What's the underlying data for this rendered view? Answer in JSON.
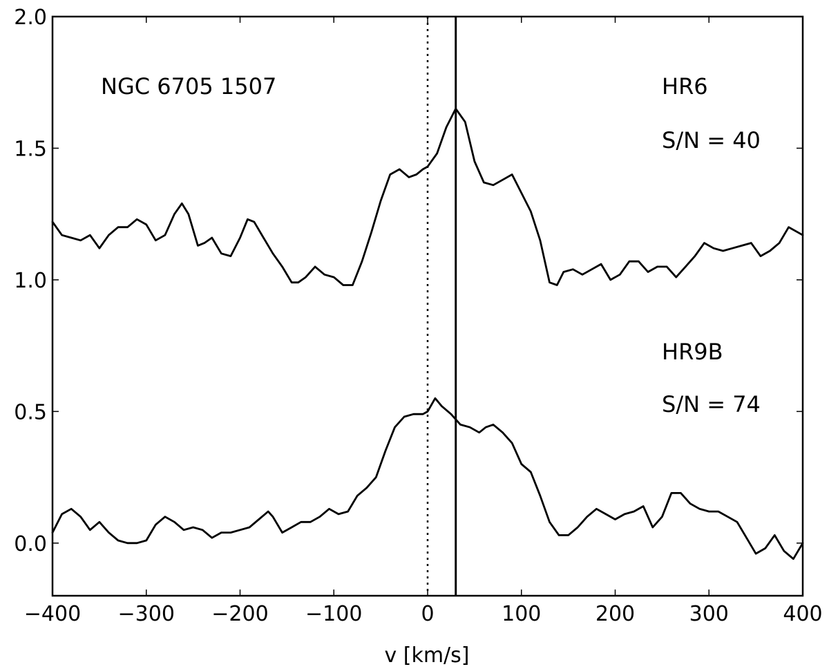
{
  "chart_data": {
    "type": "line",
    "xlabel": "v [km/s]",
    "ylabel": "",
    "xlim": [
      -400,
      400
    ],
    "ylim": [
      -0.2,
      2.0
    ],
    "x_ticks": [
      -400,
      -300,
      -200,
      -100,
      0,
      100,
      200,
      300,
      400
    ],
    "x_tick_labels": [
      "−400",
      "−300",
      "−200",
      "−100",
      "0",
      "100",
      "200",
      "300",
      "400"
    ],
    "y_ticks": [
      0.0,
      0.5,
      1.0,
      1.5,
      2.0
    ],
    "y_tick_labels": [
      "0.0",
      "0.5",
      "1.0",
      "1.5",
      "2.0"
    ],
    "grid": false,
    "annotations": {
      "object": "NGC 6705 1507",
      "top_setting": "HR6",
      "top_snr": "S/N = 40",
      "bottom_setting": "HR9B",
      "bottom_snr": "S/N = 74"
    },
    "reference_lines": [
      {
        "x": 0,
        "style": "dotted"
      },
      {
        "x": 30,
        "style": "solid"
      }
    ],
    "series": [
      {
        "x": [
          -400,
          -390,
          -380,
          -370,
          -360,
          -350,
          -340,
          -330,
          -320,
          -310,
          -300,
          -290,
          -280,
          -270,
          -262,
          -255,
          -245,
          -238,
          -230,
          -220,
          -210,
          -200,
          -192,
          -185,
          -175,
          -165,
          -155,
          -145,
          -138,
          -130,
          -120,
          -110,
          -100,
          -90,
          -80,
          -70,
          -60,
          -50,
          -40,
          -30,
          -20,
          -12,
          -5,
          0,
          10,
          20,
          30,
          40,
          50,
          60,
          70,
          80,
          90,
          100,
          110,
          120,
          130,
          138,
          145,
          155,
          165,
          175,
          185,
          195,
          205,
          215,
          225,
          235,
          245,
          255,
          265,
          275,
          285,
          295,
          305,
          315,
          325,
          335,
          345,
          355,
          365,
          375,
          385,
          395,
          400
        ],
        "values": [
          1.22,
          1.17,
          1.16,
          1.15,
          1.17,
          1.12,
          1.17,
          1.2,
          1.2,
          1.23,
          1.21,
          1.15,
          1.17,
          1.25,
          1.29,
          1.25,
          1.13,
          1.14,
          1.16,
          1.1,
          1.09,
          1.16,
          1.23,
          1.22,
          1.16,
          1.1,
          1.05,
          0.99,
          0.99,
          1.01,
          1.05,
          1.02,
          1.01,
          0.98,
          0.98,
          1.07,
          1.18,
          1.3,
          1.4,
          1.42,
          1.39,
          1.4,
          1.42,
          1.43,
          1.48,
          1.58,
          1.65,
          1.6,
          1.45,
          1.37,
          1.36,
          1.38,
          1.4,
          1.33,
          1.26,
          1.15,
          0.99,
          0.98,
          1.03,
          1.04,
          1.02,
          1.04,
          1.06,
          1.0,
          1.02,
          1.07,
          1.07,
          1.03,
          1.05,
          1.05,
          1.01,
          1.05,
          1.09,
          1.14,
          1.12,
          1.11,
          1.12,
          1.13,
          1.14,
          1.09,
          1.11,
          1.14,
          1.2,
          1.18,
          1.17
        ]
      },
      {
        "x": [
          -400,
          -390,
          -380,
          -370,
          -360,
          -350,
          -340,
          -330,
          -320,
          -310,
          -300,
          -290,
          -280,
          -270,
          -260,
          -250,
          -240,
          -230,
          -220,
          -210,
          -200,
          -190,
          -180,
          -170,
          -165,
          -155,
          -145,
          -135,
          -125,
          -115,
          -105,
          -95,
          -85,
          -75,
          -65,
          -55,
          -45,
          -35,
          -25,
          -15,
          -5,
          0,
          8,
          15,
          25,
          35,
          45,
          55,
          62,
          70,
          80,
          90,
          100,
          110,
          120,
          130,
          140,
          150,
          160,
          170,
          180,
          190,
          200,
          210,
          220,
          230,
          240,
          250,
          260,
          270,
          280,
          290,
          300,
          310,
          320,
          330,
          340,
          350,
          360,
          370,
          380,
          390,
          400
        ],
        "values": [
          0.04,
          0.11,
          0.13,
          0.1,
          0.05,
          0.08,
          0.04,
          0.01,
          0.0,
          0.0,
          0.01,
          0.07,
          0.1,
          0.08,
          0.05,
          0.06,
          0.05,
          0.02,
          0.04,
          0.04,
          0.05,
          0.06,
          0.09,
          0.12,
          0.1,
          0.04,
          0.06,
          0.08,
          0.08,
          0.1,
          0.13,
          0.11,
          0.12,
          0.18,
          0.21,
          0.25,
          0.35,
          0.44,
          0.48,
          0.49,
          0.49,
          0.5,
          0.55,
          0.52,
          0.49,
          0.45,
          0.44,
          0.42,
          0.44,
          0.45,
          0.42,
          0.38,
          0.3,
          0.27,
          0.18,
          0.08,
          0.03,
          0.03,
          0.06,
          0.1,
          0.13,
          0.11,
          0.09,
          0.11,
          0.12,
          0.14,
          0.06,
          0.1,
          0.19,
          0.19,
          0.15,
          0.13,
          0.12,
          0.12,
          0.1,
          0.08,
          0.02,
          -0.04,
          -0.02,
          0.03,
          -0.03,
          -0.06,
          0.0
        ]
      }
    ]
  }
}
